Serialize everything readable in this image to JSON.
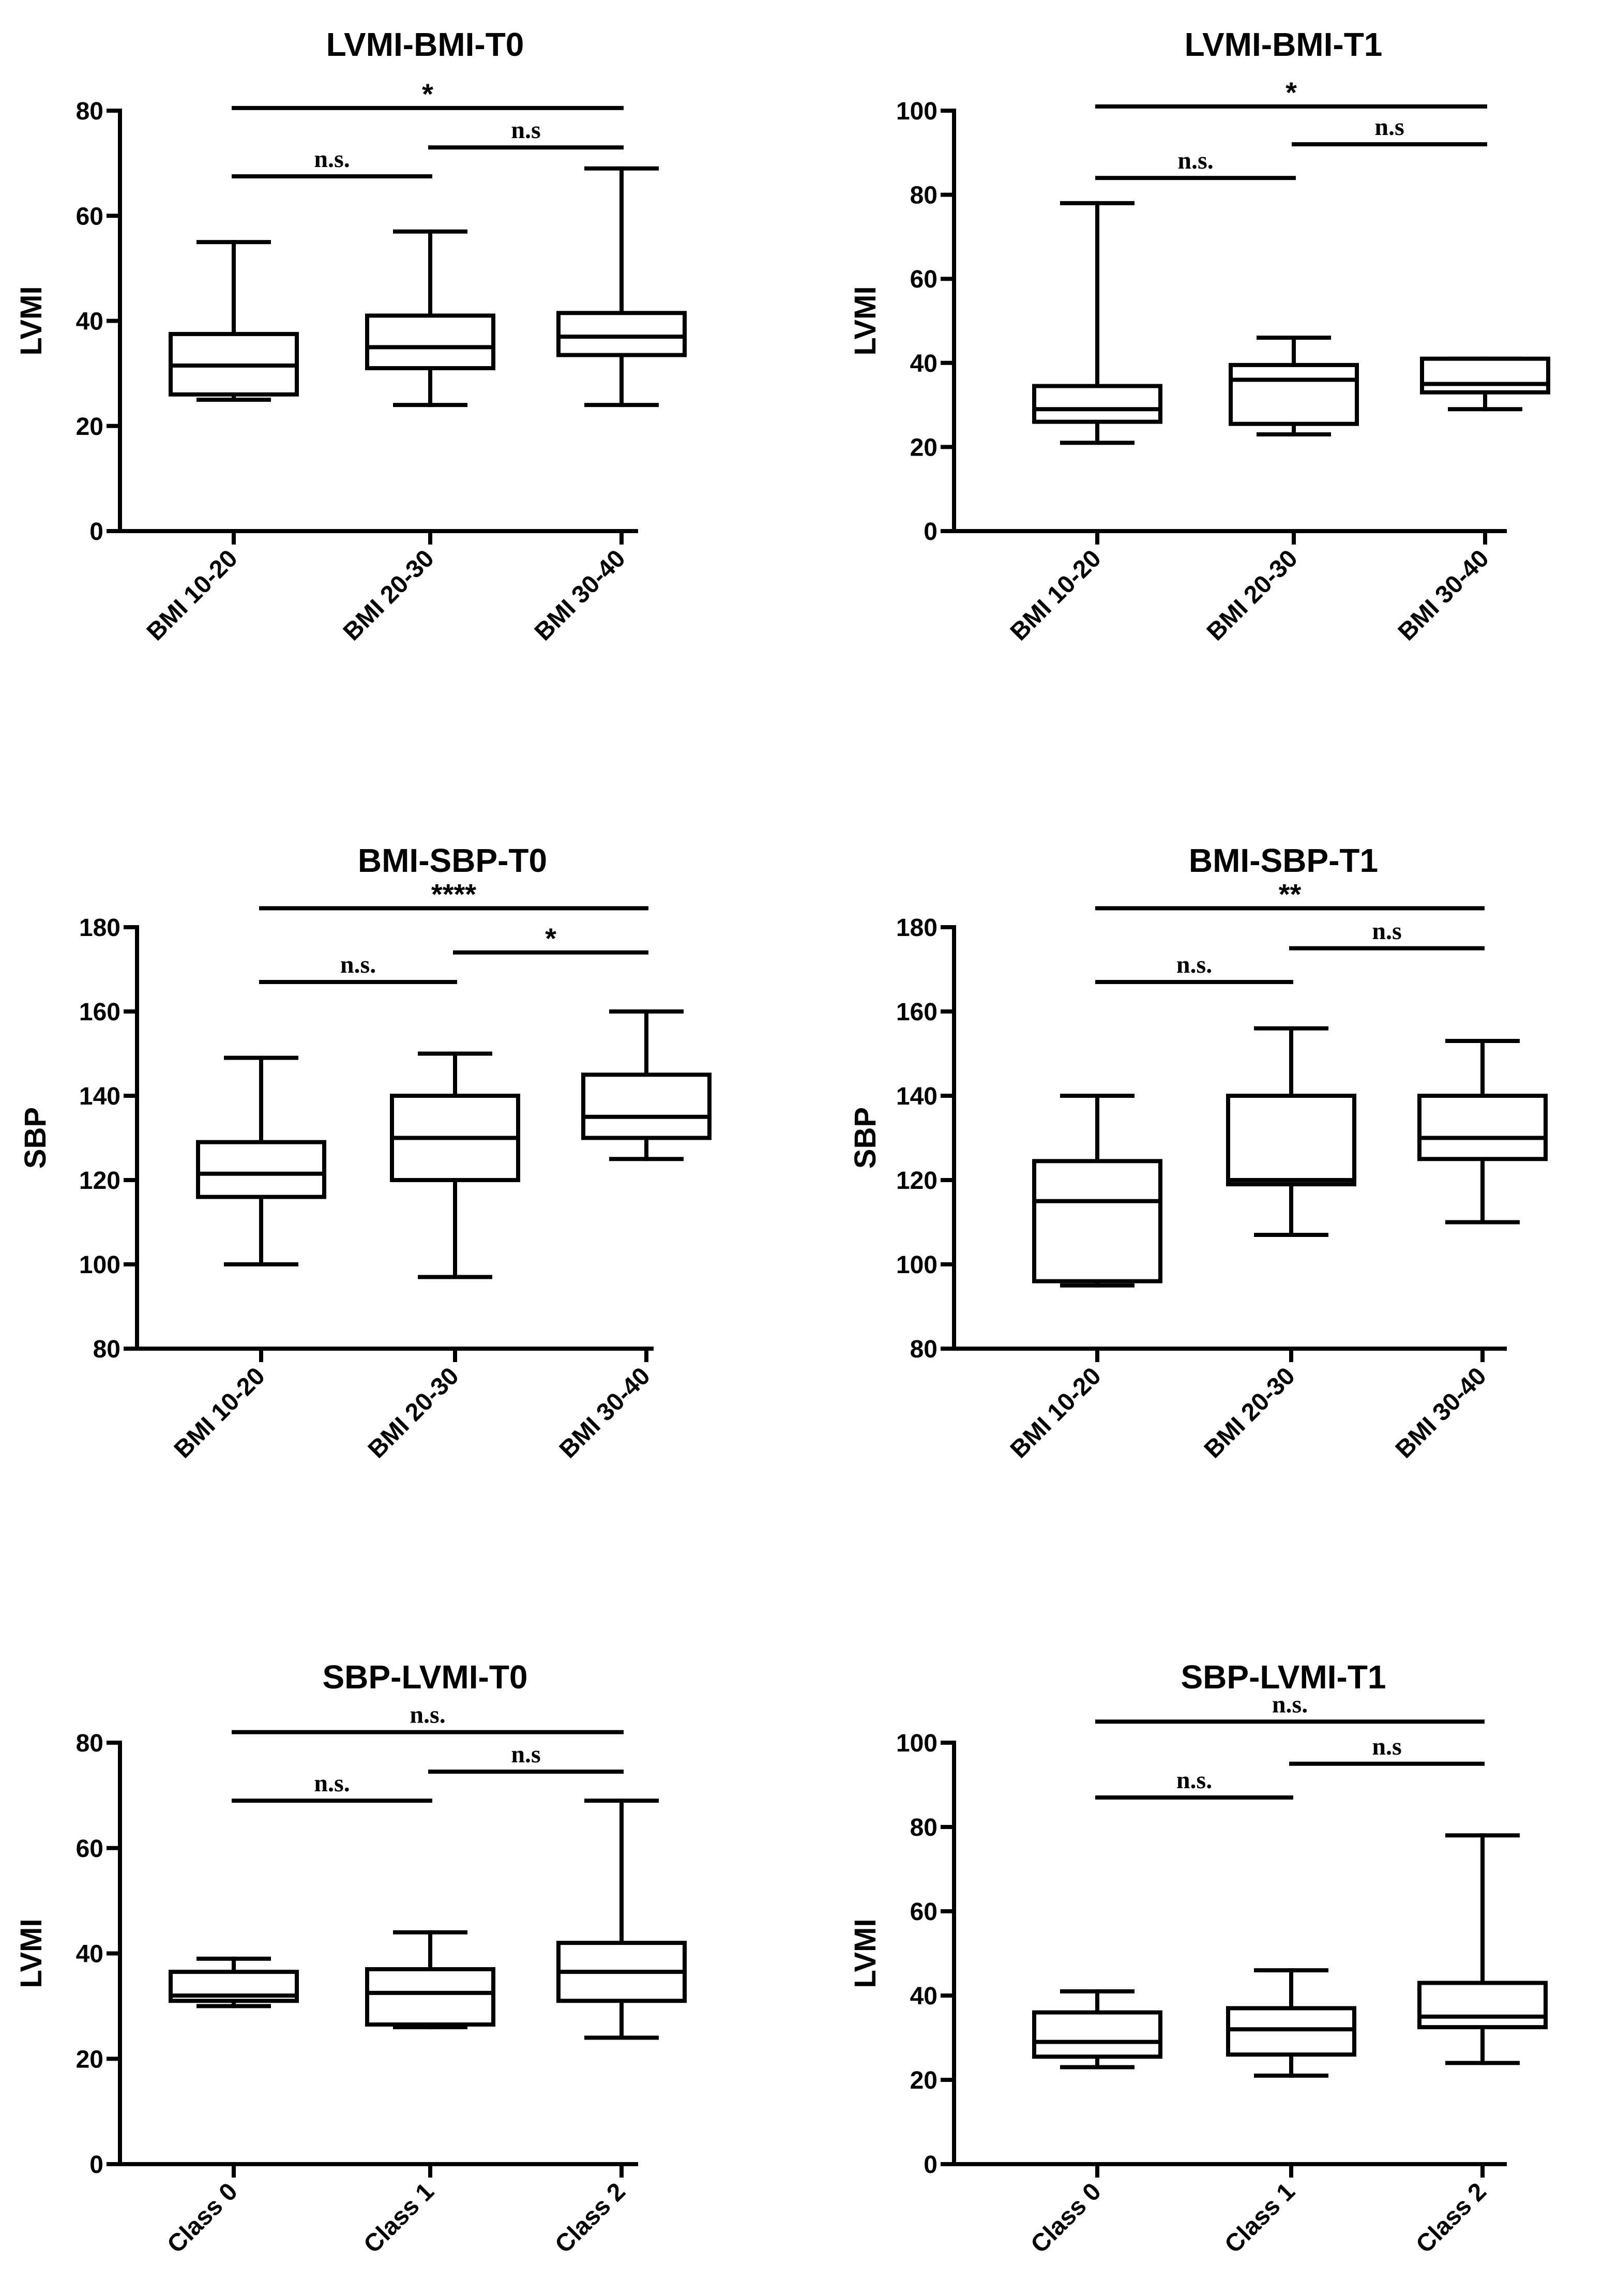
{
  "chart_data": [
    {
      "type": "box",
      "title": "LVMI-BMI-T0",
      "ylabel": "LVMI",
      "xlabel": "",
      "ylim": [
        0,
        80
      ],
      "yticks": [
        0,
        20,
        40,
        60,
        80
      ],
      "categories": [
        "BMI 10-20",
        "BMI 20-30",
        "BMI 30-40"
      ],
      "boxes": [
        {
          "min": 25,
          "q1": 26,
          "median": 31.5,
          "q3": 37.5,
          "max": 55
        },
        {
          "min": 24,
          "q1": 31,
          "median": 35,
          "q3": 41,
          "max": 57
        },
        {
          "min": 24,
          "q1": 33.5,
          "median": 37,
          "q3": 41.5,
          "max": 69
        }
      ],
      "significance": [
        {
          "from": 0,
          "to": 1,
          "label": "n.s.",
          "y": 67.5
        },
        {
          "from": 1,
          "to": 2,
          "label": "n.s",
          "y": 73
        },
        {
          "from": 0,
          "to": 2,
          "label": "*",
          "y": 80.5
        }
      ]
    },
    {
      "type": "box",
      "title": "LVMI-BMI-T1",
      "ylabel": "LVMI",
      "xlabel": "",
      "ylim": [
        0,
        100
      ],
      "yticks": [
        0,
        20,
        40,
        60,
        80,
        100
      ],
      "categories": [
        "BMI 10-20",
        "BMI 20-30",
        "BMI 30-40"
      ],
      "boxes": [
        {
          "min": 21,
          "q1": 26,
          "median": 29,
          "q3": 34.5,
          "max": 78
        },
        {
          "min": 23,
          "q1": 25.5,
          "median": 36,
          "q3": 39.5,
          "max": 46
        },
        {
          "min": 29,
          "q1": 33,
          "median": 35,
          "q3": 41,
          "max": 41
        }
      ],
      "significance": [
        {
          "from": 0,
          "to": 1,
          "label": "n.s.",
          "y": 84
        },
        {
          "from": 1,
          "to": 2,
          "label": "n.s",
          "y": 92
        },
        {
          "from": 0,
          "to": 2,
          "label": "*",
          "y": 101
        }
      ]
    },
    {
      "type": "box",
      "title": "BMI-SBP-T0",
      "ylabel": "SBP",
      "xlabel": "",
      "ylim": [
        80,
        180
      ],
      "yticks": [
        80,
        100,
        120,
        140,
        160,
        180
      ],
      "categories": [
        "BMI 10-20",
        "BMI 20-30",
        "BMI 30-40"
      ],
      "boxes": [
        {
          "min": 100,
          "q1": 116,
          "median": 121.5,
          "q3": 129,
          "max": 149
        },
        {
          "min": 97,
          "q1": 120,
          "median": 130,
          "q3": 140,
          "max": 150
        },
        {
          "min": 125,
          "q1": 130,
          "median": 135,
          "q3": 145,
          "max": 160
        }
      ],
      "significance": [
        {
          "from": 0,
          "to": 1,
          "label": "n.s.",
          "y": 167
        },
        {
          "from": 1,
          "to": 2,
          "label": "*",
          "y": 174
        },
        {
          "from": 0,
          "to": 2,
          "label": "****",
          "y": 184.5
        }
      ]
    },
    {
      "type": "box",
      "title": "BMI-SBP-T1",
      "ylabel": "SBP",
      "xlabel": "",
      "ylim": [
        80,
        180
      ],
      "yticks": [
        80,
        100,
        120,
        140,
        160,
        180
      ],
      "categories": [
        "BMI 10-20",
        "BMI 20-30",
        "BMI 30-40"
      ],
      "boxes": [
        {
          "min": 95,
          "q1": 96,
          "median": 115,
          "q3": 124.5,
          "max": 140
        },
        {
          "min": 107,
          "q1": 119,
          "median": 120,
          "q3": 140,
          "max": 156
        },
        {
          "min": 110,
          "q1": 125,
          "median": 130,
          "q3": 140,
          "max": 153
        }
      ],
      "significance": [
        {
          "from": 0,
          "to": 1,
          "label": "n.s.",
          "y": 167
        },
        {
          "from": 1,
          "to": 2,
          "label": "n.s",
          "y": 175
        },
        {
          "from": 0,
          "to": 2,
          "label": "**",
          "y": 184.5
        }
      ]
    },
    {
      "type": "box",
      "title": "SBP-LVMI-T0",
      "ylabel": "LVMI",
      "xlabel": "",
      "ylim": [
        0,
        80
      ],
      "yticks": [
        0,
        20,
        40,
        60,
        80
      ],
      "categories": [
        "Class 0",
        "Class 1",
        "Class 2"
      ],
      "boxes": [
        {
          "min": 30,
          "q1": 31,
          "median": 32,
          "q3": 36.5,
          "max": 39
        },
        {
          "min": 26,
          "q1": 26.5,
          "median": 32.5,
          "q3": 37,
          "max": 44
        },
        {
          "min": 24,
          "q1": 31,
          "median": 36.5,
          "q3": 42,
          "max": 69
        }
      ],
      "significance": [
        {
          "from": 0,
          "to": 1,
          "label": "n.s.",
          "y": 69
        },
        {
          "from": 1,
          "to": 2,
          "label": "n.s",
          "y": 74.5
        },
        {
          "from": 0,
          "to": 2,
          "label": "n.s.",
          "y": 82
        }
      ]
    },
    {
      "type": "box",
      "title": "SBP-LVMI-T1",
      "ylabel": "LVMI",
      "xlabel": "",
      "ylim": [
        0,
        100
      ],
      "yticks": [
        0,
        20,
        40,
        60,
        80,
        100
      ],
      "categories": [
        "Class 0",
        "Class 1",
        "Class 2"
      ],
      "boxes": [
        {
          "min": 23,
          "q1": 25.5,
          "median": 29,
          "q3": 36,
          "max": 41
        },
        {
          "min": 21,
          "q1": 26,
          "median": 32,
          "q3": 37,
          "max": 46
        },
        {
          "min": 24,
          "q1": 32.5,
          "median": 35,
          "q3": 43,
          "max": 78
        }
      ],
      "significance": [
        {
          "from": 0,
          "to": 1,
          "label": "n.s.",
          "y": 87
        },
        {
          "from": 1,
          "to": 2,
          "label": "n.s",
          "y": 95
        },
        {
          "from": 0,
          "to": 2,
          "label": "n.s.",
          "y": 105
        }
      ]
    }
  ]
}
